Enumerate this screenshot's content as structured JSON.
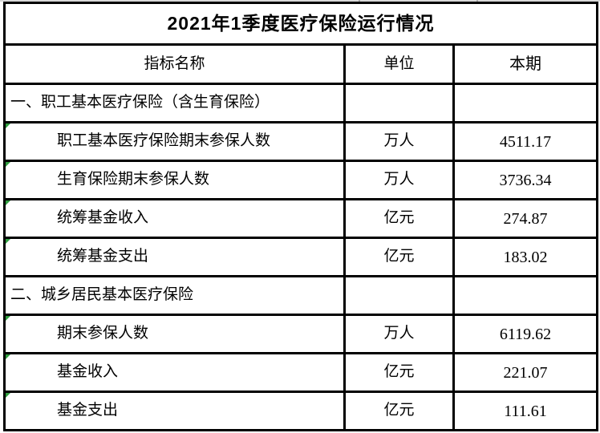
{
  "table": {
    "title": "2021年1季度医疗保险运行情况",
    "columns": [
      "指标名称",
      "单位",
      "本期"
    ],
    "rows": [
      {
        "type": "section",
        "label": "一、职工基本医疗保险（含生育保险）",
        "unit": "",
        "value": ""
      },
      {
        "type": "data",
        "label": "职工基本医疗保险期末参保人数",
        "unit": "万人",
        "value": "4511.17"
      },
      {
        "type": "data",
        "label": "生育保险期末参保人数",
        "unit": "万人",
        "value": "3736.34"
      },
      {
        "type": "data",
        "label": "统筹基金收入",
        "unit": "亿元",
        "value": "274.87"
      },
      {
        "type": "data",
        "label": "统筹基金支出",
        "unit": "亿元",
        "value": "183.02"
      },
      {
        "type": "section",
        "label": "二、城乡居民基本医疗保险",
        "unit": "",
        "value": ""
      },
      {
        "type": "data",
        "label": "期末参保人数",
        "unit": "万人",
        "value": "6119.62"
      },
      {
        "type": "data",
        "label": "基金收入",
        "unit": "亿元",
        "value": "221.07"
      },
      {
        "type": "data",
        "label": "基金支出",
        "unit": "亿元",
        "value": "111.61"
      }
    ],
    "colors": {
      "border_black": "#000000",
      "indicator_green": "#2f9e3f",
      "top_gridline_gray": "#d8d8d8"
    }
  }
}
